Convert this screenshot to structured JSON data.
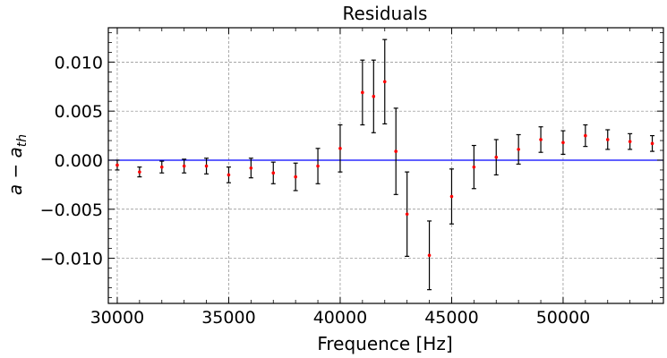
{
  "chart_data": {
    "type": "scatter",
    "title": "Residuals",
    "xlabel": "Frequence [Hz]",
    "ylabel_base": "a − a",
    "ylabel_sub": "th",
    "xlim": [
      29600,
      54500
    ],
    "ylim": [
      -0.0146,
      0.0135
    ],
    "x_ticks": [
      30000,
      35000,
      40000,
      45000,
      50000
    ],
    "x_tick_labels": [
      "30000",
      "35000",
      "40000",
      "45000",
      "50000"
    ],
    "y_ticks": [
      -0.01,
      -0.005,
      0.0,
      0.005,
      0.01
    ],
    "y_tick_labels": [
      "−0.010",
      "−0.005",
      "0.000",
      "0.005",
      "0.010"
    ],
    "grid": true,
    "reference_line": {
      "y": 0.0,
      "color": "#0000ff"
    },
    "point_color": "#ff0000",
    "errorbar_color": "#000000",
    "series": [
      {
        "x": [
          30000,
          31000,
          32000,
          33000,
          34000,
          35000,
          36000,
          37000,
          38000,
          39000,
          40000,
          41000,
          41500,
          42000,
          42500,
          43000,
          44000,
          45000,
          46000,
          47000,
          48000,
          49000,
          50000,
          51000,
          52000,
          53000,
          54000
        ],
        "y": [
          -0.0005,
          -0.0012,
          -0.0007,
          -0.0006,
          -0.0006,
          -0.0015,
          -0.0008,
          -0.0013,
          -0.0017,
          -0.0006,
          0.0012,
          0.0069,
          0.0065,
          0.008,
          0.0009,
          -0.0055,
          -0.0097,
          -0.0037,
          -0.0007,
          0.0003,
          0.0011,
          0.0021,
          0.0018,
          0.0025,
          0.0021,
          0.0019,
          0.0017
        ],
        "err": [
          0.0005,
          0.0005,
          0.0006,
          0.0007,
          0.0008,
          0.0008,
          0.001,
          0.0011,
          0.0014,
          0.0018,
          0.0024,
          0.0033,
          0.0037,
          0.0043,
          0.0044,
          0.0043,
          0.0035,
          0.0028,
          0.0022,
          0.0018,
          0.0015,
          0.0013,
          0.0012,
          0.0011,
          0.001,
          0.0008,
          0.0008
        ]
      }
    ]
  }
}
